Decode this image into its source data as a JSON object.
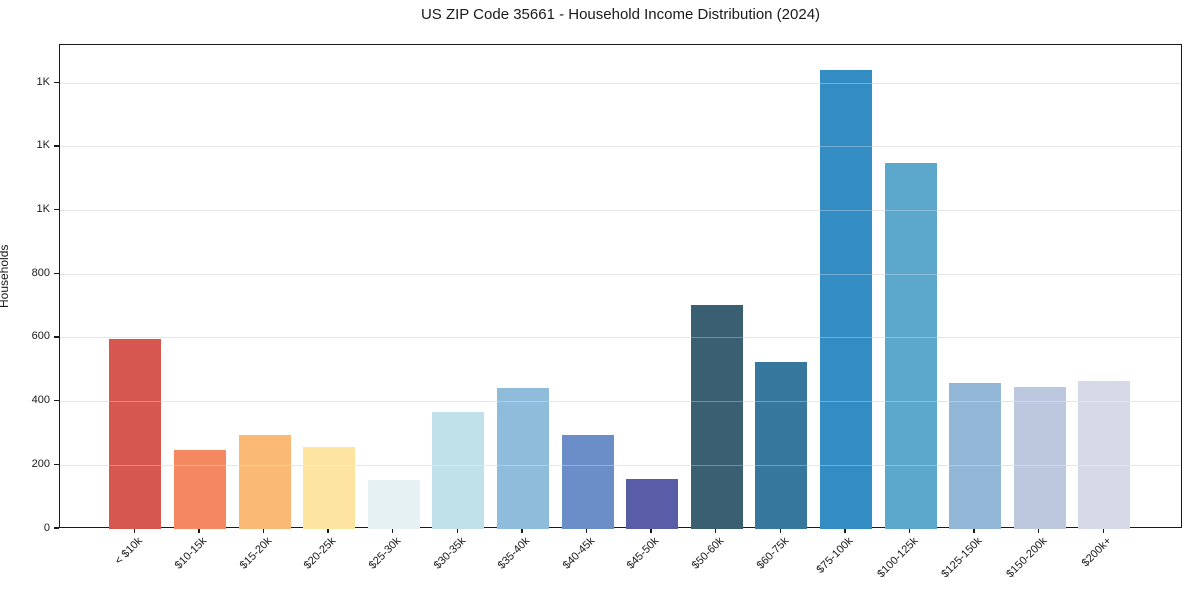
{
  "chart_data": {
    "type": "bar",
    "title": "US ZIP Code 35661 - Household Income Distribution (2024)",
    "xlabel": "",
    "ylabel": "Households",
    "categories": [
      "< $10k",
      "$10-15k",
      "$15-20k",
      "$20-25k",
      "$25-30k",
      "$30-35k",
      "$35-40k",
      "$40-45k",
      "$45-50k",
      "$50-60k",
      "$60-75k",
      "$75-100k",
      "$100-125k",
      "$125-150k",
      "$150-200k",
      "$200k+"
    ],
    "values": [
      597,
      248,
      296,
      257,
      155,
      368,
      444,
      296,
      158,
      705,
      524,
      1443,
      1150,
      460,
      445,
      465
    ],
    "bar_colors": [
      "#d65750",
      "#f38861",
      "#fbb976",
      "#fde4a1",
      "#e5f1f3",
      "#c0e1ea",
      "#90bcdc",
      "#6b8ec8",
      "#595da8",
      "#3a5f73",
      "#36789d",
      "#348dc2",
      "#5ca7cc",
      "#92b6d6",
      "#bcc8dd",
      "#d6d9e7"
    ],
    "ylim": [
      0,
      1520
    ],
    "ytick_values": [
      0,
      200,
      400,
      600,
      800,
      1000,
      1200,
      1400
    ],
    "ytick_labels": [
      "0",
      "200",
      "400",
      "600",
      "800",
      "1K",
      "1K",
      "1K"
    ],
    "grid": "horizontal",
    "legend": "none",
    "axis_color": "#1a1a1a",
    "grid_color": "#dcdcdc"
  }
}
